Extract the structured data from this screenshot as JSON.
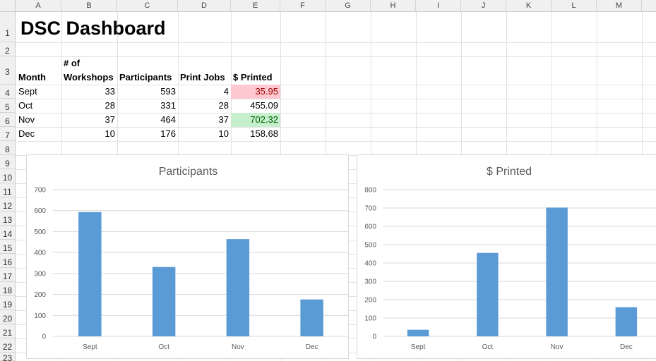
{
  "columns": [
    "A",
    "B",
    "C",
    "D",
    "E",
    "F",
    "G",
    "H",
    "I",
    "J",
    "K",
    "L",
    "M"
  ],
  "rows": [
    "1",
    "2",
    "3",
    "4",
    "5",
    "6",
    "7",
    "8",
    "9",
    "10",
    "11",
    "12",
    "13",
    "14",
    "15",
    "16",
    "17",
    "18",
    "19",
    "20",
    "21",
    "22",
    "23"
  ],
  "sheet_title": "DSC Dashboard",
  "headers": {
    "month": "Month",
    "workshops_line1": "# of",
    "workshops_line2": "Workshops",
    "participants": "Participants",
    "print_jobs": "Print Jobs",
    "printed": "$ Printed"
  },
  "table": [
    {
      "month": "Sept",
      "workshops": "33",
      "participants": "593",
      "print_jobs": "4",
      "printed": "35.95"
    },
    {
      "month": "Oct",
      "workshops": "28",
      "participants": "331",
      "print_jobs": "28",
      "printed": "455.09"
    },
    {
      "month": "Nov",
      "workshops": "37",
      "participants": "464",
      "print_jobs": "37",
      "printed": "702.32"
    },
    {
      "month": "Dec",
      "workshops": "10",
      "participants": "176",
      "print_jobs": "10",
      "printed": "158.68"
    }
  ],
  "colors": {
    "bar": "#5b9bd5",
    "low_highlight": "#ffc7ce",
    "high_highlight": "#c6efce"
  },
  "chart_data": [
    {
      "type": "bar",
      "title": "Participants",
      "categories": [
        "Sept",
        "Oct",
        "Nov",
        "Dec"
      ],
      "values": [
        593,
        331,
        464,
        176
      ],
      "ylim": [
        0,
        700
      ],
      "yticks": [
        0,
        100,
        200,
        300,
        400,
        500,
        600,
        700
      ],
      "xlabel": "",
      "ylabel": "",
      "grid": true,
      "legend": "none"
    },
    {
      "type": "bar",
      "title": "$ Printed",
      "categories": [
        "Sept",
        "Oct",
        "Nov",
        "Dec"
      ],
      "values": [
        35.95,
        455.09,
        702.32,
        158.68
      ],
      "ylim": [
        0,
        800
      ],
      "yticks": [
        0,
        100,
        200,
        300,
        400,
        500,
        600,
        700,
        800
      ],
      "xlabel": "",
      "ylabel": "",
      "grid": true,
      "legend": "none"
    }
  ]
}
